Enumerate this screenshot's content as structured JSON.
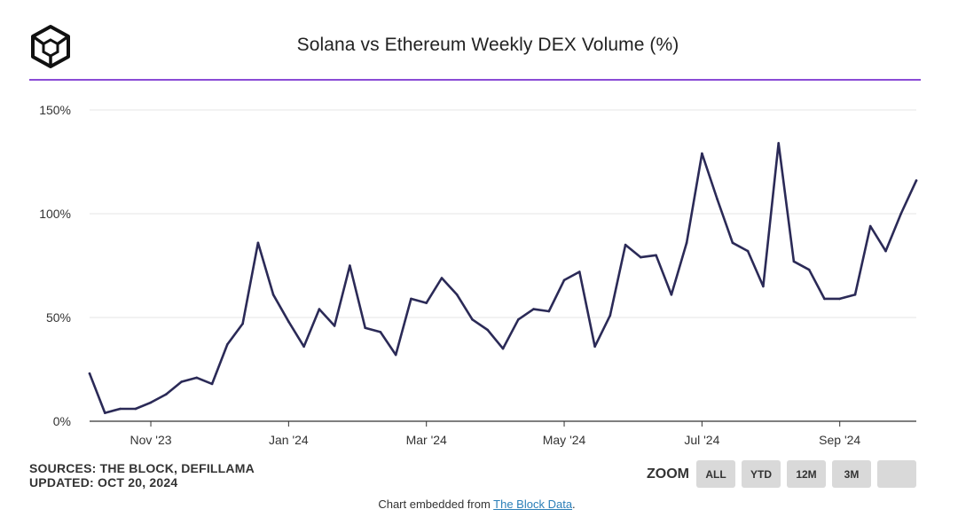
{
  "header": {
    "logo_name": "the-block-logo-icon",
    "title": "Solana vs Ethereum Weekly DEX Volume (%)"
  },
  "colors": {
    "accent_rule": "#8a4bd6",
    "line": "#2b2a57",
    "grid": "#e6e6e6"
  },
  "chart_data": {
    "type": "line",
    "title": "Solana vs Ethereum Weekly DEX Volume (%)",
    "xlabel": "",
    "ylabel": "",
    "ylim": [
      0,
      150
    ],
    "yticks": [
      0,
      50,
      100,
      150
    ],
    "ytick_labels": [
      "0%",
      "50%",
      "100%",
      "150%"
    ],
    "xtick_labels": [
      {
        "label": "Nov '23",
        "week_index": 4
      },
      {
        "label": "Jan '24",
        "week_index": 13
      },
      {
        "label": "Mar '24",
        "week_index": 22
      },
      {
        "label": "May '24",
        "week_index": 31
      },
      {
        "label": "Jul '24",
        "week_index": 40
      },
      {
        "label": "Sep '24",
        "week_index": 49
      }
    ],
    "series": [
      {
        "name": "Solana vs Ethereum Weekly DEX Volume (%)",
        "values": [
          23,
          4,
          6,
          6,
          9,
          13,
          19,
          21,
          18,
          37,
          47,
          86,
          61,
          48,
          36,
          54,
          46,
          75,
          45,
          43,
          32,
          59,
          57,
          69,
          61,
          49,
          44,
          35,
          49,
          54,
          53,
          68,
          72,
          36,
          51,
          85,
          79,
          80,
          61,
          86,
          129,
          107,
          86,
          82,
          65,
          134,
          77,
          73,
          59,
          59,
          61,
          94,
          82,
          100,
          116
        ]
      }
    ],
    "grid": true,
    "legend": "none"
  },
  "sources": {
    "line1": "SOURCES: THE BLOCK, DEFILLAMA",
    "line2": "UPDATED: OCT 20, 2024"
  },
  "zoom": {
    "label": "ZOOM",
    "buttons": [
      "ALL",
      "YTD",
      "12M",
      "3M",
      ""
    ]
  },
  "footer": {
    "prefix": "Chart embedded from ",
    "link_text": "The Block Data",
    "suffix": "."
  }
}
